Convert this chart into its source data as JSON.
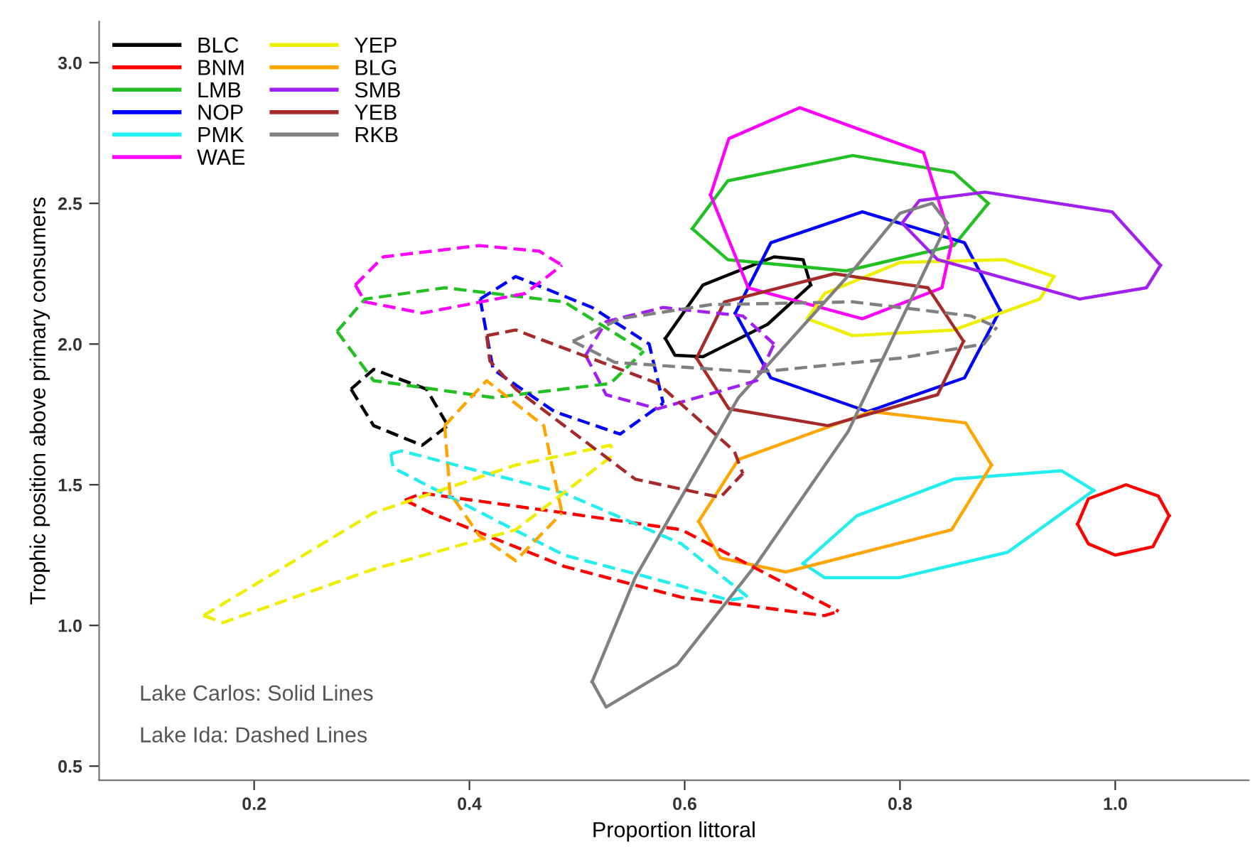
{
  "chart_data": {
    "type": "line",
    "xlabel": "Proportion littoral",
    "ylabel": "Trophic position above primary consumers",
    "xlim": [
      0.056,
      1.124
    ],
    "ylim": [
      0.45,
      3.146
    ],
    "xticks": [
      0.2,
      0.4,
      0.6,
      0.8,
      {
        "value": 1,
        "label": "1.0"
      }
    ],
    "yticks": [
      0.5,
      {
        "value": 1,
        "label": "1.0"
      },
      1.5,
      {
        "value": 2,
        "label": "2.0"
      },
      2.5,
      {
        "value": 3,
        "label": "3.0"
      }
    ],
    "grid": false,
    "legend": "top left",
    "marker": "none",
    "annotations": [
      "Lake Carlos: Solid Lines",
      "Lake Ida: Dashed Lines"
    ],
    "series": [
      {
        "name": "BLC",
        "color": "#000000",
        "line_style": "solid",
        "x": [
          0.582,
          0.617,
          0.683,
          0.71,
          0.717
        ],
        "values": [
          2.02,
          2.21,
          2.31,
          2.3,
          2.21
        ]
      },
      {
        "color": "#000000",
        "line_style": "solid",
        "x": [
          0.582,
          0.591,
          0.617,
          0.677,
          0.717
        ],
        "values": [
          2.02,
          1.96,
          1.955,
          2.07,
          2.21
        ]
      },
      {
        "name": "BNM",
        "color": "#ff0000",
        "line_style": "solid",
        "x": [
          0.965,
          0.975,
          1.01,
          1.04,
          1.05
        ],
        "values": [
          1.36,
          1.45,
          1.5,
          1.46,
          1.39
        ]
      },
      {
        "color": "#ff0000",
        "line_style": "solid",
        "x": [
          0.965,
          0.975,
          1.0,
          1.035,
          1.05
        ],
        "values": [
          1.36,
          1.29,
          1.25,
          1.28,
          1.39
        ]
      },
      {
        "name": "LMB",
        "color": "#22c022",
        "line_style": "solid",
        "x": [
          0.607,
          0.64,
          0.756,
          0.85,
          0.882
        ],
        "values": [
          2.41,
          2.58,
          2.67,
          2.61,
          2.5
        ]
      },
      {
        "color": "#22c022",
        "line_style": "solid",
        "x": [
          0.607,
          0.64,
          0.75,
          0.85,
          0.882
        ],
        "values": [
          2.41,
          2.3,
          2.26,
          2.35,
          2.5
        ]
      },
      {
        "name": "NOP",
        "color": "#0000ff",
        "line_style": "solid",
        "x": [
          0.647,
          0.68,
          0.765,
          0.86,
          0.893
        ],
        "values": [
          2.11,
          2.36,
          2.47,
          2.36,
          2.12
        ]
      },
      {
        "color": "#0000ff",
        "line_style": "solid",
        "x": [
          0.647,
          0.68,
          0.77,
          0.86,
          0.893
        ],
        "values": [
          2.11,
          1.88,
          1.76,
          1.88,
          2.12
        ]
      },
      {
        "name": "PMK",
        "color": "#22eeee",
        "line_style": "solid",
        "x": [
          0.71,
          0.76,
          0.85,
          0.95,
          0.98
        ],
        "values": [
          1.22,
          1.39,
          1.52,
          1.55,
          1.48
        ]
      },
      {
        "color": "#22eeee",
        "line_style": "solid",
        "x": [
          0.71,
          0.73,
          0.8,
          0.9,
          0.98
        ],
        "values": [
          1.22,
          1.17,
          1.17,
          1.26,
          1.48
        ]
      },
      {
        "name": "WAE",
        "color": "#ff00ff",
        "line_style": "solid",
        "x": [
          0.624,
          0.641,
          0.707,
          0.822,
          0.848
        ],
        "values": [
          2.53,
          2.73,
          2.84,
          2.68,
          2.36
        ]
      },
      {
        "color": "#ff00ff",
        "line_style": "solid",
        "x": [
          0.624,
          0.659,
          0.765,
          0.839,
          0.848
        ],
        "values": [
          2.53,
          2.2,
          2.09,
          2.2,
          2.36
        ]
      },
      {
        "name": "YEP",
        "color": "#eeee00",
        "line_style": "solid",
        "x": [
          0.714,
          0.73,
          0.8,
          0.897,
          0.943
        ],
        "values": [
          2.09,
          2.18,
          2.29,
          2.3,
          2.24
        ]
      },
      {
        "color": "#eeee00",
        "line_style": "solid",
        "x": [
          0.714,
          0.756,
          0.85,
          0.93,
          0.943
        ],
        "values": [
          2.09,
          2.03,
          2.05,
          2.16,
          2.24
        ]
      },
      {
        "name": "BLG",
        "color": "#ffa500",
        "line_style": "solid",
        "x": [
          0.613,
          0.65,
          0.773,
          0.861,
          0.885
        ],
        "values": [
          1.37,
          1.59,
          1.76,
          1.72,
          1.57
        ]
      },
      {
        "color": "#ffa500",
        "line_style": "solid",
        "x": [
          0.613,
          0.633,
          0.694,
          0.848,
          0.885
        ],
        "values": [
          1.37,
          1.24,
          1.19,
          1.34,
          1.57
        ]
      },
      {
        "name": "SMB",
        "color": "#a020f0",
        "line_style": "solid",
        "x": [
          0.802,
          0.818,
          0.879,
          0.997,
          1.042
        ],
        "values": [
          2.43,
          2.51,
          2.54,
          2.47,
          2.28
        ]
      },
      {
        "color": "#a020f0",
        "line_style": "solid",
        "x": [
          0.802,
          0.835,
          0.967,
          1.029,
          1.042
        ],
        "values": [
          2.43,
          2.3,
          2.16,
          2.2,
          2.28
        ]
      },
      {
        "name": "YEB",
        "color": "#a52a2a",
        "line_style": "solid",
        "x": [
          0.611,
          0.637,
          0.739,
          0.826,
          0.859
        ],
        "values": [
          1.95,
          2.15,
          2.25,
          2.2,
          2.01
        ]
      },
      {
        "color": "#a52a2a",
        "line_style": "solid",
        "x": [
          0.611,
          0.641,
          0.733,
          0.835,
          0.859
        ],
        "values": [
          1.95,
          1.77,
          1.71,
          1.82,
          2.01
        ]
      },
      {
        "name": "RKB",
        "color": "#808080",
        "line_style": "solid",
        "x": [
          0.514,
          0.554,
          0.65,
          0.756,
          0.8,
          0.83,
          0.844
        ],
        "values": [
          0.8,
          1.17,
          1.81,
          2.26,
          2.465,
          2.5,
          2.43
        ]
      },
      {
        "color": "#808080",
        "line_style": "solid",
        "x": [
          0.514,
          0.527,
          0.593,
          0.667,
          0.752,
          0.844
        ],
        "values": [
          0.8,
          0.71,
          0.86,
          1.22,
          1.69,
          2.43
        ]
      },
      {
        "color": "#000000",
        "line_style": "dashed",
        "x": [
          0.29,
          0.311,
          0.36,
          0.38
        ],
        "values": [
          1.84,
          1.91,
          1.84,
          1.71
        ]
      },
      {
        "color": "#000000",
        "line_style": "dashed",
        "x": [
          0.29,
          0.311,
          0.356,
          0.38
        ],
        "values": [
          1.84,
          1.71,
          1.64,
          1.71
        ]
      },
      {
        "color": "#ff0000",
        "line_style": "dashed",
        "x": [
          0.34,
          0.356,
          0.488,
          0.597,
          0.743
        ],
        "values": [
          1.445,
          1.47,
          1.4,
          1.34,
          1.05
        ]
      },
      {
        "color": "#ff0000",
        "line_style": "dashed",
        "x": [
          0.34,
          0.364,
          0.488,
          0.597,
          0.73,
          0.743
        ],
        "values": [
          1.445,
          1.4,
          1.21,
          1.1,
          1.035,
          1.05
        ]
      },
      {
        "color": "#22c022",
        "line_style": "dashed",
        "x": [
          0.277,
          0.303,
          0.377,
          0.488,
          0.562
        ],
        "values": [
          2.045,
          2.16,
          2.2,
          2.15,
          1.975
        ]
      },
      {
        "color": "#22c022",
        "line_style": "dashed",
        "x": [
          0.277,
          0.311,
          0.422,
          0.531,
          0.562
        ],
        "values": [
          2.045,
          1.87,
          1.81,
          1.86,
          1.975
        ]
      },
      {
        "color": "#0000ff",
        "line_style": "dashed",
        "x": [
          0.41,
          0.443,
          0.514,
          0.567,
          0.58
        ],
        "values": [
          2.16,
          2.24,
          2.13,
          2.0,
          1.79
        ]
      },
      {
        "color": "#0000ff",
        "line_style": "dashed",
        "x": [
          0.41,
          0.422,
          0.479,
          0.54,
          0.58
        ],
        "values": [
          2.16,
          1.91,
          1.76,
          1.68,
          1.79
        ]
      },
      {
        "color": "#22eeee",
        "line_style": "dashed",
        "x": [
          0.327,
          0.337,
          0.488,
          0.597,
          0.659
        ],
        "values": [
          1.61,
          1.62,
          1.47,
          1.29,
          1.1
        ]
      },
      {
        "color": "#22eeee",
        "line_style": "dashed",
        "x": [
          0.327,
          0.329,
          0.488,
          0.597,
          0.641,
          0.659
        ],
        "values": [
          1.61,
          1.56,
          1.25,
          1.14,
          1.09,
          1.1
        ]
      },
      {
        "color": "#ff00ff",
        "line_style": "dashed",
        "x": [
          0.294,
          0.32,
          0.409,
          0.465,
          0.486
        ],
        "values": [
          2.21,
          2.31,
          2.35,
          2.33,
          2.28
        ]
      },
      {
        "color": "#ff00ff",
        "line_style": "dashed",
        "x": [
          0.294,
          0.303,
          0.356,
          0.452,
          0.486
        ],
        "values": [
          2.21,
          2.15,
          2.11,
          2.18,
          2.28
        ]
      },
      {
        "color": "#eeee00",
        "line_style": "dashed",
        "x": [
          0.153,
          0.311,
          0.443,
          0.531,
          0.535
        ],
        "values": [
          1.035,
          1.4,
          1.57,
          1.64,
          1.61
        ]
      },
      {
        "color": "#eeee00",
        "line_style": "dashed",
        "x": [
          0.153,
          0.171,
          0.311,
          0.443,
          0.535
        ],
        "values": [
          1.035,
          1.01,
          1.2,
          1.34,
          1.61
        ]
      },
      {
        "color": "#ffa500",
        "line_style": "dashed",
        "x": [
          0.377,
          0.416,
          0.469,
          0.486
        ],
        "values": [
          1.71,
          1.87,
          1.71,
          1.4
        ]
      },
      {
        "color": "#ffa500",
        "line_style": "dashed",
        "x": [
          0.377,
          0.382,
          0.409,
          0.443,
          0.486
        ],
        "values": [
          1.71,
          1.47,
          1.32,
          1.23,
          1.4
        ]
      },
      {
        "color": "#a020f0",
        "line_style": "dashed",
        "x": [
          0.508,
          0.527,
          0.58,
          0.654,
          0.683
        ],
        "values": [
          1.96,
          2.08,
          2.13,
          2.1,
          2.0
        ]
      },
      {
        "color": "#a020f0",
        "line_style": "dashed",
        "x": [
          0.508,
          0.527,
          0.575,
          0.667,
          0.683
        ],
        "values": [
          1.96,
          1.82,
          1.77,
          1.87,
          2.0
        ]
      },
      {
        "color": "#a52a2a",
        "line_style": "dashed",
        "x": [
          0.416,
          0.443,
          0.575,
          0.646,
          0.654
        ],
        "values": [
          2.03,
          2.05,
          1.86,
          1.62,
          1.54
        ]
      },
      {
        "color": "#a52a2a",
        "line_style": "dashed",
        "x": [
          0.416,
          0.419,
          0.443,
          0.554,
          0.633,
          0.654
        ],
        "values": [
          2.03,
          1.94,
          1.84,
          1.52,
          1.455,
          1.54
        ]
      },
      {
        "color": "#808080",
        "line_style": "dashed",
        "x": [
          0.496,
          0.54,
          0.624,
          0.756,
          0.866,
          0.89
        ],
        "values": [
          2.01,
          2.09,
          2.14,
          2.15,
          2.1,
          2.06
        ]
      },
      {
        "color": "#808080",
        "line_style": "dashed",
        "x": [
          0.496,
          0.535,
          0.667,
          0.8,
          0.878,
          0.89
        ],
        "values": [
          2.01,
          1.935,
          1.9,
          1.95,
          2.0,
          2.06
        ]
      }
    ]
  }
}
